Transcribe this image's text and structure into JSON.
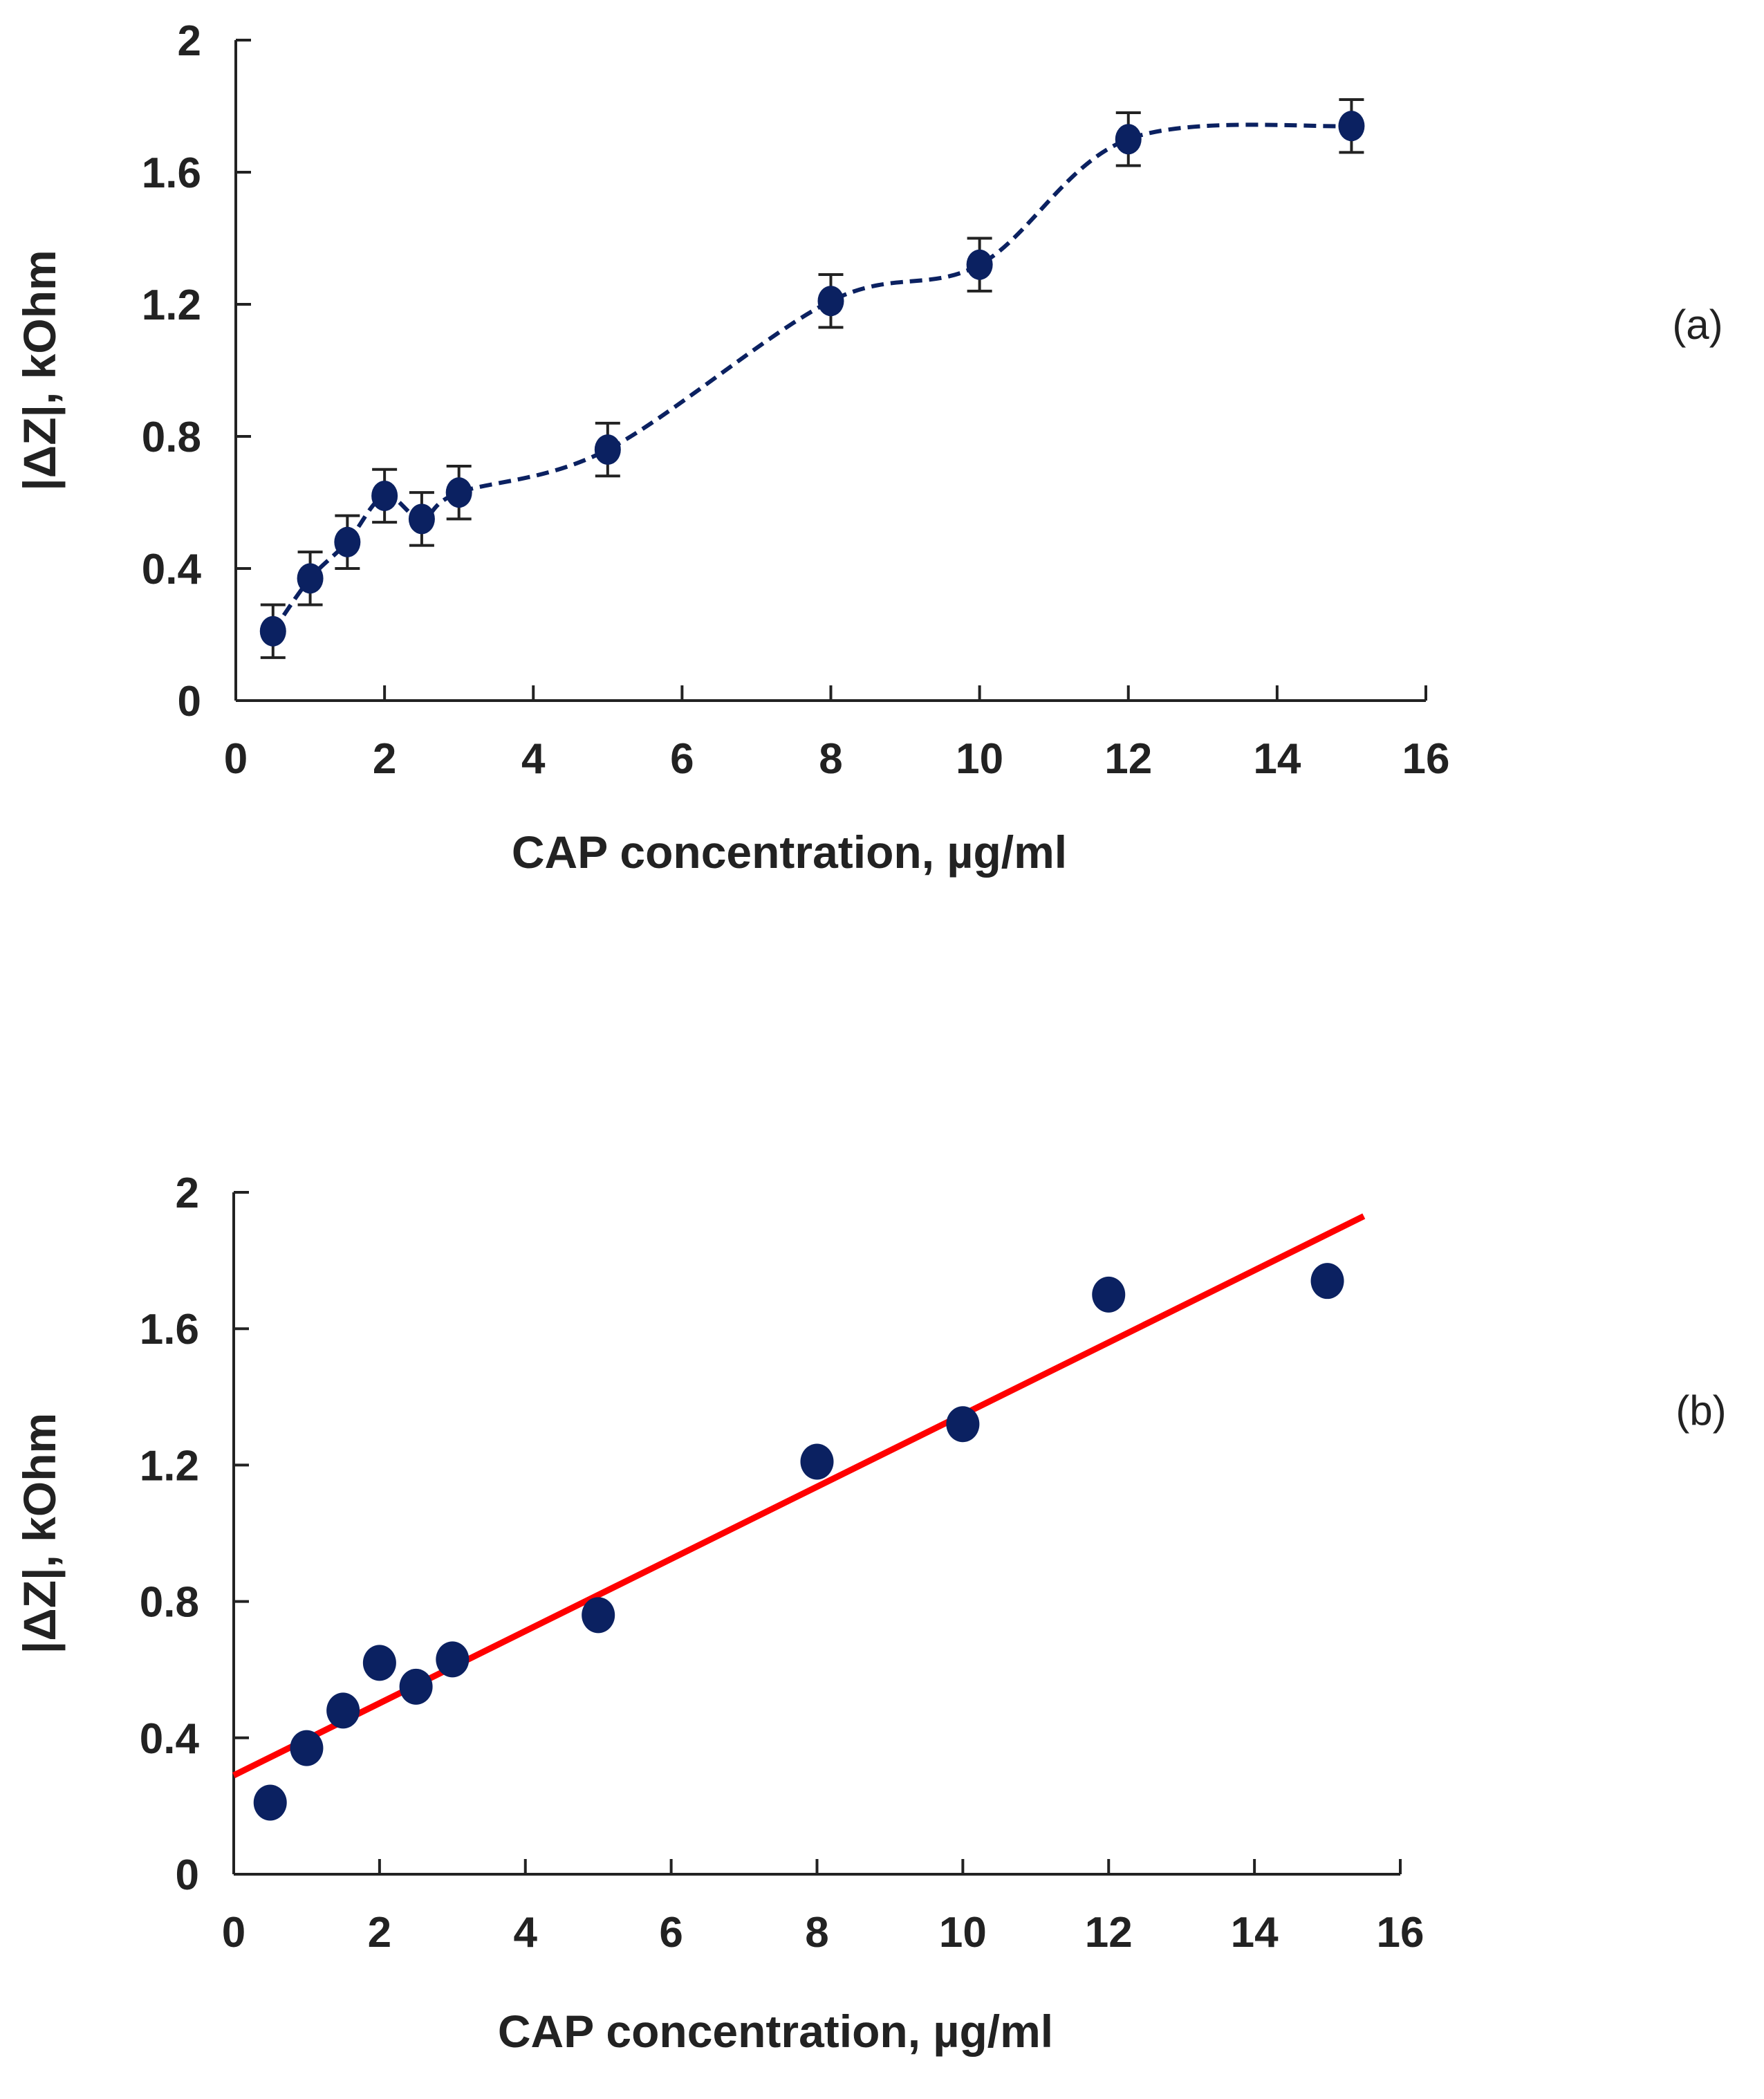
{
  "chart_data": [
    {
      "type": "line",
      "panel_label": "(a)",
      "xlabel": "CAP concentration, µg/ml",
      "ylabel": "|ΔZ|,  kOhm",
      "xlim": [
        0,
        16
      ],
      "ylim": [
        0,
        2
      ],
      "xticks": [
        "0",
        "2",
        "4",
        "6",
        "8",
        "10",
        "12",
        "14",
        "16"
      ],
      "yticks": [
        "0",
        "0.4",
        "0.8",
        "1.2",
        "1.6",
        "2"
      ],
      "grid": false,
      "series": [
        {
          "name": "|ΔZ|",
          "color": "#0b2161",
          "line_style": "dashed-smooth",
          "x": [
            0.5,
            1,
            1.5,
            2,
            2.5,
            3,
            5,
            8,
            10,
            12,
            15
          ],
          "y": [
            0.21,
            0.37,
            0.48,
            0.62,
            0.55,
            0.63,
            0.76,
            1.21,
            1.32,
            1.7,
            1.74
          ],
          "error": [
            0.08,
            0.08,
            0.08,
            0.08,
            0.08,
            0.08,
            0.08,
            0.08,
            0.08,
            0.08,
            0.08
          ]
        }
      ]
    },
    {
      "type": "scatter",
      "panel_label": "(b)",
      "xlabel": "CAP concentration, µg/ml",
      "ylabel": "|ΔZ|,  kOhm",
      "xlim": [
        0,
        16
      ],
      "ylim": [
        0,
        2
      ],
      "xticks": [
        "0",
        "2",
        "4",
        "6",
        "8",
        "10",
        "12",
        "14",
        "16"
      ],
      "yticks": [
        "0",
        "0.4",
        "0.8",
        "1.2",
        "1.6",
        "2"
      ],
      "grid": false,
      "series": [
        {
          "name": "|ΔZ|",
          "color": "#0b2161",
          "x": [
            0.5,
            1,
            1.5,
            2,
            2.5,
            3,
            5,
            8,
            10,
            12,
            15
          ],
          "y": [
            0.21,
            0.37,
            0.48,
            0.62,
            0.55,
            0.63,
            0.76,
            1.21,
            1.32,
            1.7,
            1.74
          ]
        }
      ],
      "fit_line": {
        "color": "#ff0000",
        "x": [
          0,
          15.5
        ],
        "y": [
          0.29,
          1.93
        ]
      }
    }
  ]
}
